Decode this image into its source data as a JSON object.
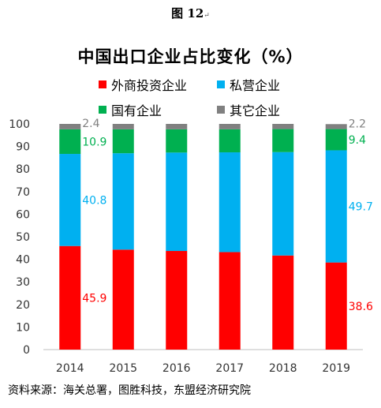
{
  "figure_label": "图 12",
  "figure_mark": "↵",
  "source": "资料来源：海关总署，图胜科技，东盟经济研究院",
  "chart_data": {
    "type": "bar",
    "stacked": true,
    "title": "中国出口企业占比变化（%）",
    "categories": [
      "2014",
      "2015",
      "2016",
      "2017",
      "2018",
      "2019"
    ],
    "series": [
      {
        "name": "外商投资企业",
        "color": "#FF0000",
        "values": [
          45.9,
          44.3,
          43.7,
          43.2,
          41.7,
          38.6
        ]
      },
      {
        "name": "私营企业",
        "color": "#00B0F0",
        "values": [
          40.8,
          42.7,
          43.6,
          44.2,
          45.8,
          49.7
        ]
      },
      {
        "name": "国有企业",
        "color": "#00B050",
        "values": [
          10.9,
          10.6,
          10.3,
          10.2,
          10.2,
          9.4
        ]
      },
      {
        "name": "其它企业",
        "color": "#808080",
        "values": [
          2.4,
          2.4,
          2.4,
          2.4,
          2.3,
          2.2
        ]
      }
    ],
    "data_labels": [
      {
        "series": 0,
        "category": 0,
        "text": "45.9"
      },
      {
        "series": 1,
        "category": 0,
        "text": "40.8"
      },
      {
        "series": 2,
        "category": 0,
        "text": "10.9"
      },
      {
        "series": 3,
        "category": 0,
        "text": "2.4"
      },
      {
        "series": 0,
        "category": 5,
        "text": "38.6"
      },
      {
        "series": 1,
        "category": 5,
        "text": "49.7"
      },
      {
        "series": 2,
        "category": 5,
        "text": "9.4"
      },
      {
        "series": 3,
        "category": 5,
        "text": "2.2"
      }
    ],
    "ylim": [
      0,
      100
    ],
    "yticks": [
      0,
      10,
      20,
      30,
      40,
      50,
      60,
      70,
      80,
      90,
      100
    ],
    "grid": false,
    "legend_position": "top"
  }
}
